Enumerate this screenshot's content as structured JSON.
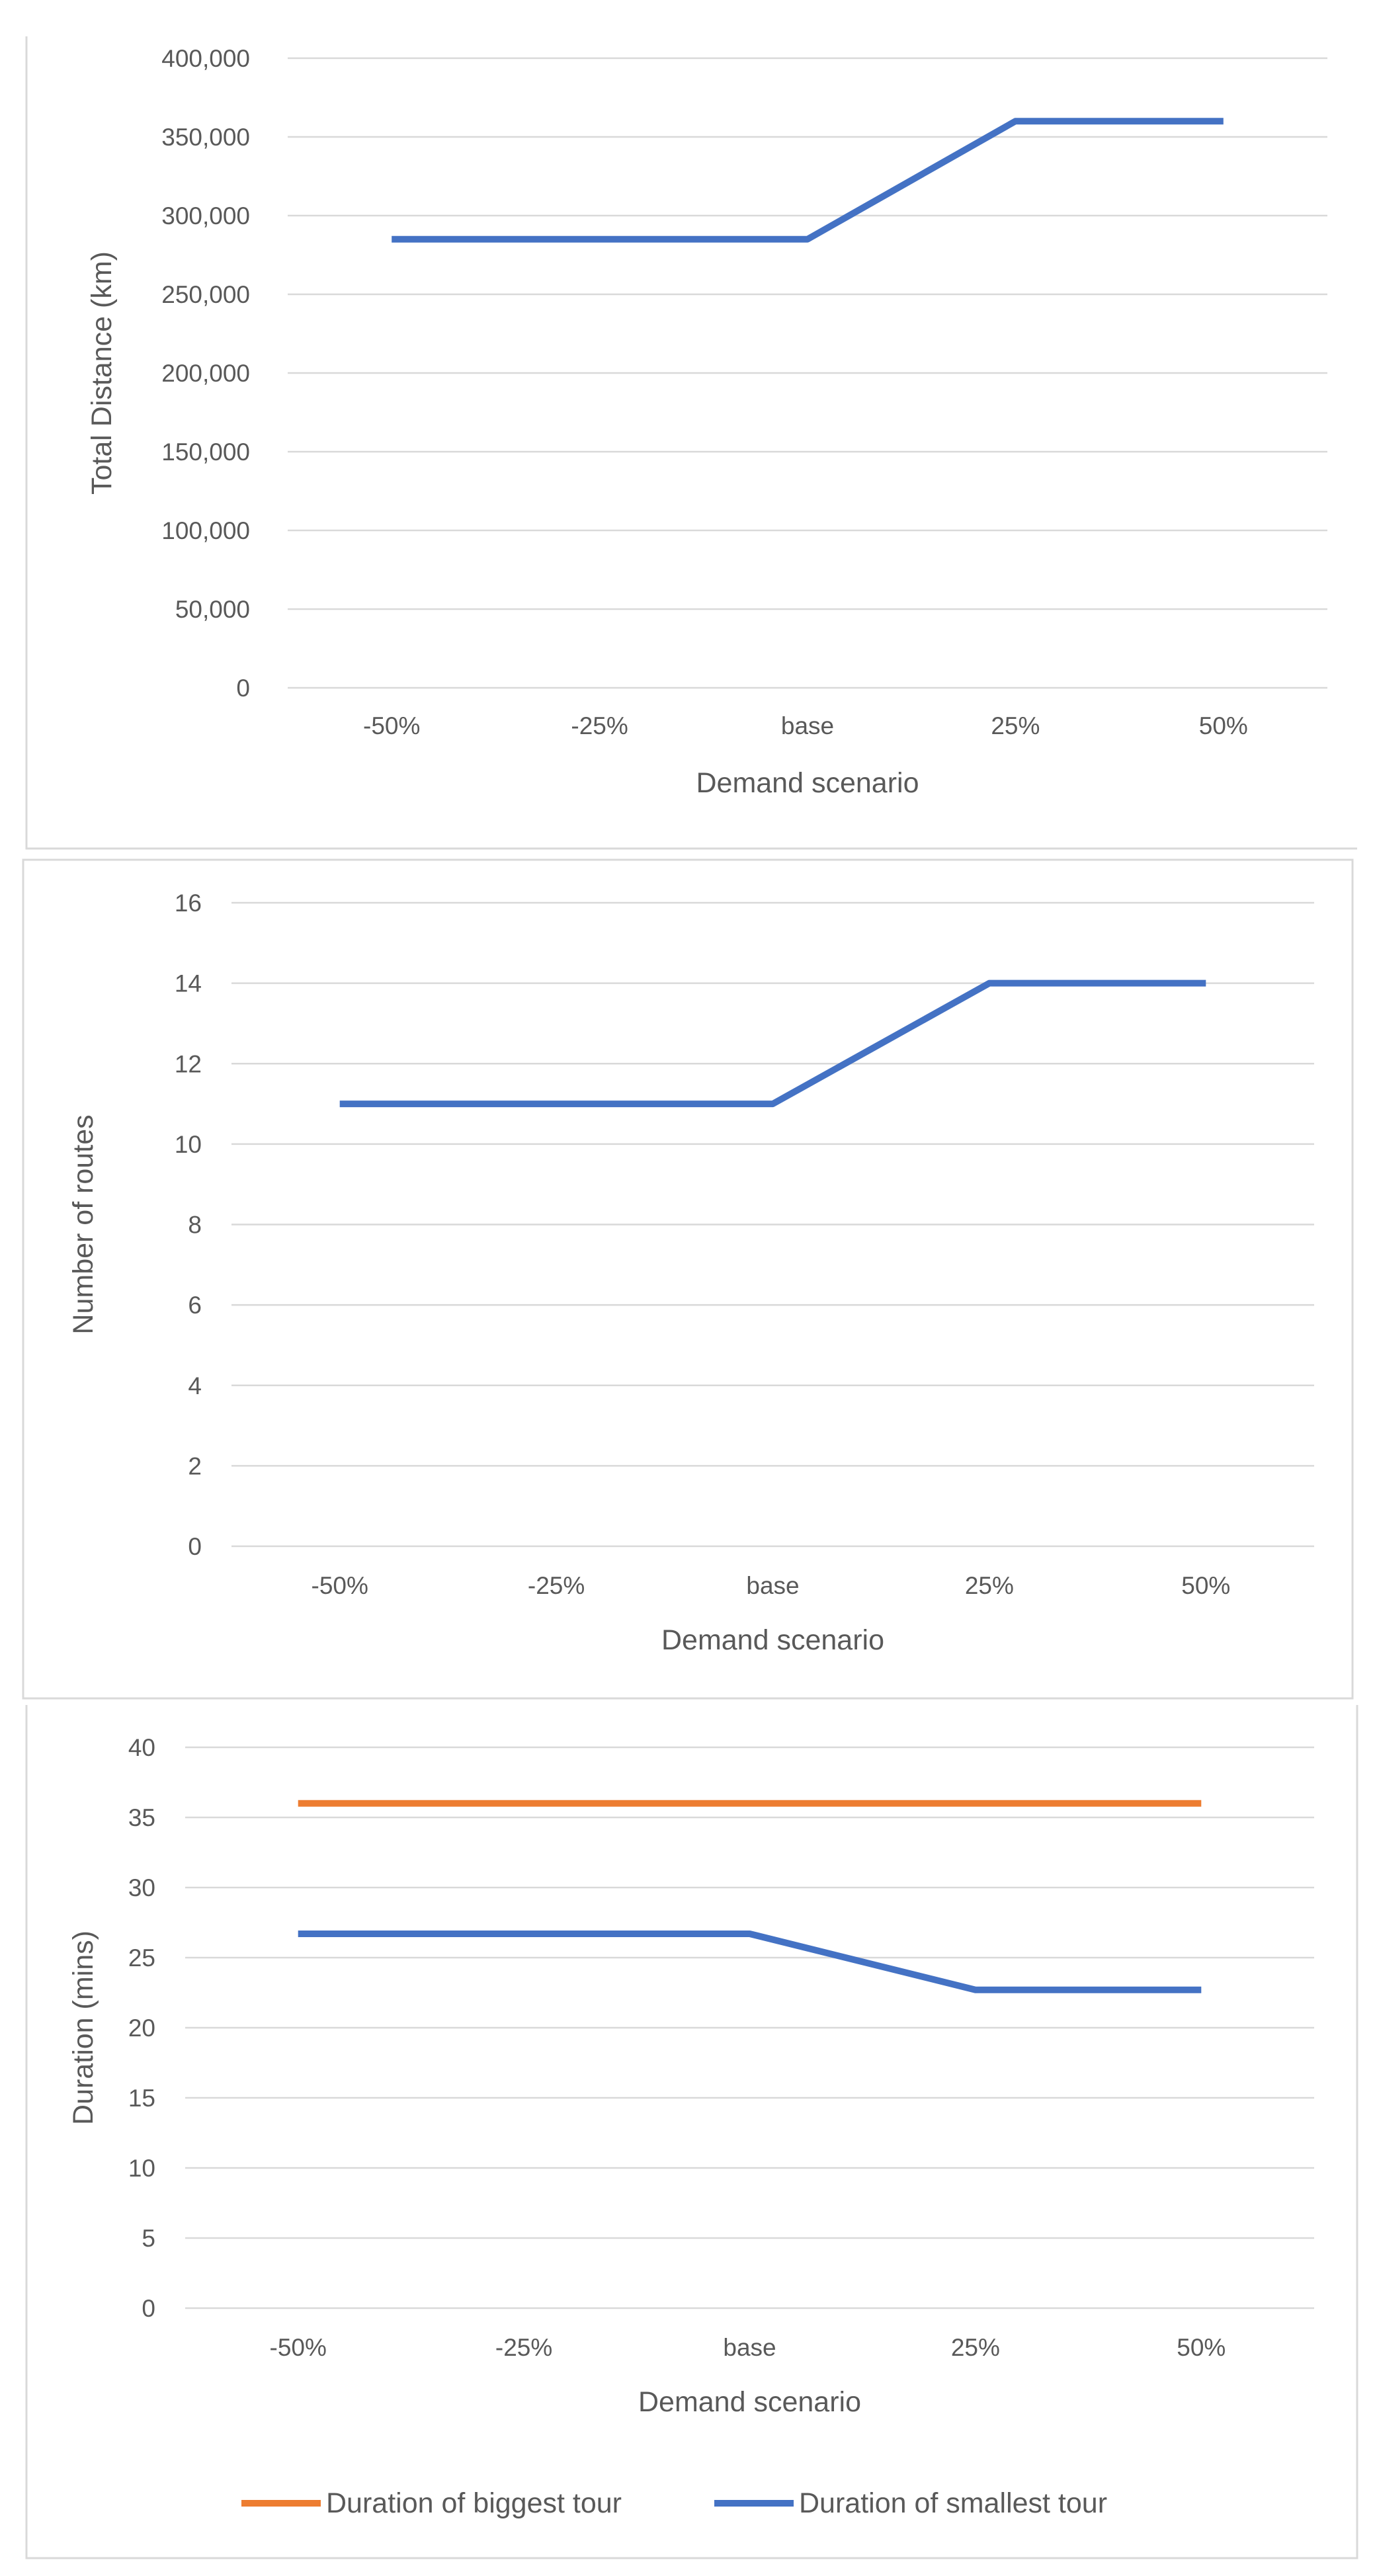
{
  "chart_data": [
    {
      "type": "line",
      "categories": [
        "-50%",
        "-25%",
        "base",
        "25%",
        "50%"
      ],
      "series": [
        {
          "name": "Total Distance",
          "values": [
            285000,
            285000,
            285000,
            360000,
            360000
          ],
          "color": "#4472C4"
        }
      ],
      "ylim": [
        0,
        400000
      ],
      "yticks": [
        0,
        50000,
        100000,
        150000,
        200000,
        250000,
        300000,
        350000,
        400000
      ],
      "ytick_labels": [
        "0",
        "50,000",
        "100,000",
        "150,000",
        "200,000",
        "250,000",
        "300,000",
        "350,000",
        "400,000"
      ],
      "xlabel": "Demand scenario",
      "ylabel": "Total Distance (km)",
      "title": "",
      "grid": true
    },
    {
      "type": "line",
      "categories": [
        "-50%",
        "-25%",
        "base",
        "25%",
        "50%"
      ],
      "series": [
        {
          "name": "Number of routes",
          "values": [
            11,
            11,
            11,
            14,
            14
          ],
          "color": "#4472C4"
        }
      ],
      "ylim": [
        0,
        16
      ],
      "yticks": [
        0,
        2,
        4,
        6,
        8,
        10,
        12,
        14,
        16
      ],
      "ytick_labels": [
        "0",
        "2",
        "4",
        "6",
        "8",
        "10",
        "12",
        "14",
        "16"
      ],
      "xlabel": "Demand scenario",
      "ylabel": "Number of routes",
      "title": "",
      "grid": true
    },
    {
      "type": "line",
      "categories": [
        "-50%",
        "-25%",
        "base",
        "25%",
        "50%"
      ],
      "series": [
        {
          "name": "Duration of biggest tour",
          "values": [
            36,
            36,
            36,
            36,
            36
          ],
          "color": "#ED7D31"
        },
        {
          "name": "Duration of smallest tour",
          "values": [
            26.7,
            26.7,
            26.7,
            22.7,
            22.7
          ],
          "color": "#4472C4"
        }
      ],
      "ylim": [
        0,
        40
      ],
      "yticks": [
        0,
        5,
        10,
        15,
        20,
        25,
        30,
        35,
        40
      ],
      "ytick_labels": [
        "0",
        "5",
        "10",
        "15",
        "20",
        "25",
        "30",
        "35",
        "40"
      ],
      "xlabel": "Demand scenario",
      "ylabel": "Duration (mins)",
      "title": "",
      "grid": true,
      "legend": "bottom"
    }
  ]
}
